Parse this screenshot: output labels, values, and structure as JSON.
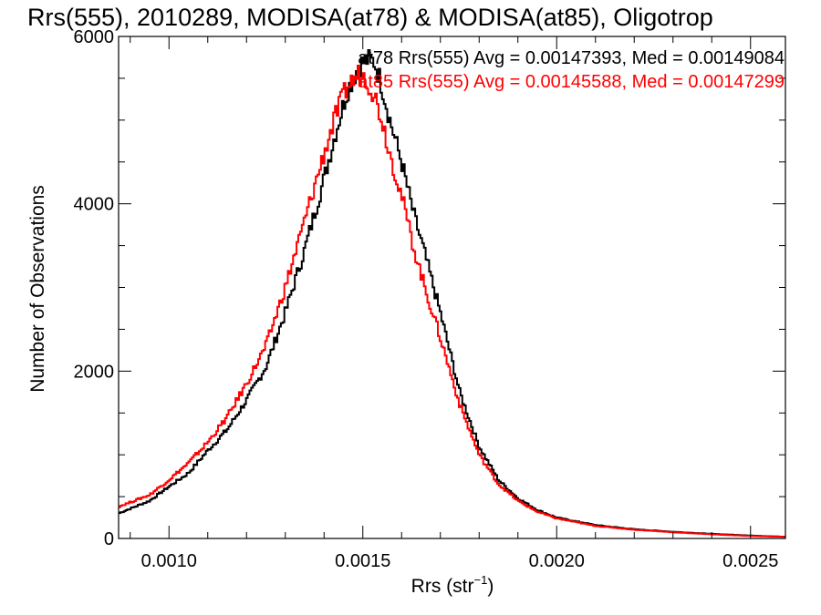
{
  "chart_data": {
    "type": "line",
    "title": "Rrs(555), 2010289, MODISA(at78) & MODISA(at85), Oligotrop",
    "xlabel": "Rrs (str",
    "xlabel_sup": "−1",
    "xlabel_end": ")",
    "ylabel": "Number of Observations",
    "xlim": [
      0.00087,
      0.00259
    ],
    "ylim": [
      0,
      6000
    ],
    "xticks": [
      0.001,
      0.0015,
      0.002,
      0.0025
    ],
    "xtick_labels": [
      "0.0010",
      "0.0015",
      "0.0020",
      "0.0025"
    ],
    "yticks": [
      0,
      2000,
      4000,
      6000
    ],
    "ytick_labels": [
      "0",
      "2000",
      "4000",
      "6000"
    ],
    "grid": false,
    "legend_position": "top-right",
    "series": [
      {
        "name": "at78",
        "color": "#000000",
        "annotation": "at78 Rrs(555) Avg = 0.00147393, Med = 0.00149084",
        "x": [
          0.00087,
          0.00095,
          0.001,
          0.00105,
          0.0011,
          0.00115,
          0.0012,
          0.00125,
          0.0013,
          0.00135,
          0.0014,
          0.00143,
          0.00146,
          0.00149,
          0.00151,
          0.00153,
          0.00155,
          0.00157,
          0.0016,
          0.00163,
          0.00166,
          0.0017,
          0.00175,
          0.0018,
          0.00185,
          0.0019,
          0.00195,
          0.002,
          0.0021,
          0.0022,
          0.0023,
          0.0024,
          0.0025,
          0.00259
        ],
        "y": [
          300,
          450,
          620,
          780,
          1050,
          1300,
          1650,
          2050,
          2700,
          3450,
          4300,
          4850,
          5350,
          5650,
          5720,
          5700,
          5400,
          5000,
          4500,
          3900,
          3400,
          2700,
          1750,
          1100,
          700,
          480,
          340,
          250,
          160,
          110,
          80,
          55,
          35,
          20
        ]
      },
      {
        "name": "at85",
        "color": "#ff0000",
        "annotation": "at85 Rrs(555) Avg = 0.00145588, Med = 0.00147299",
        "x": [
          0.00087,
          0.00095,
          0.001,
          0.00105,
          0.0011,
          0.00115,
          0.0012,
          0.00125,
          0.0013,
          0.00135,
          0.0014,
          0.00143,
          0.00146,
          0.00149,
          0.00151,
          0.00153,
          0.00155,
          0.00157,
          0.0016,
          0.00163,
          0.00166,
          0.0017,
          0.00175,
          0.0018,
          0.00185,
          0.0019,
          0.00195,
          0.002,
          0.0021,
          0.0022,
          0.0023,
          0.0024,
          0.0025,
          0.00259
        ],
        "y": [
          380,
          520,
          700,
          900,
          1150,
          1450,
          1850,
          2300,
          3000,
          3800,
          4600,
          5050,
          5400,
          5550,
          5500,
          5300,
          5000,
          4600,
          4100,
          3500,
          3000,
          2400,
          1600,
          1000,
          650,
          450,
          320,
          240,
          150,
          105,
          75,
          50,
          30,
          20
        ]
      }
    ]
  }
}
